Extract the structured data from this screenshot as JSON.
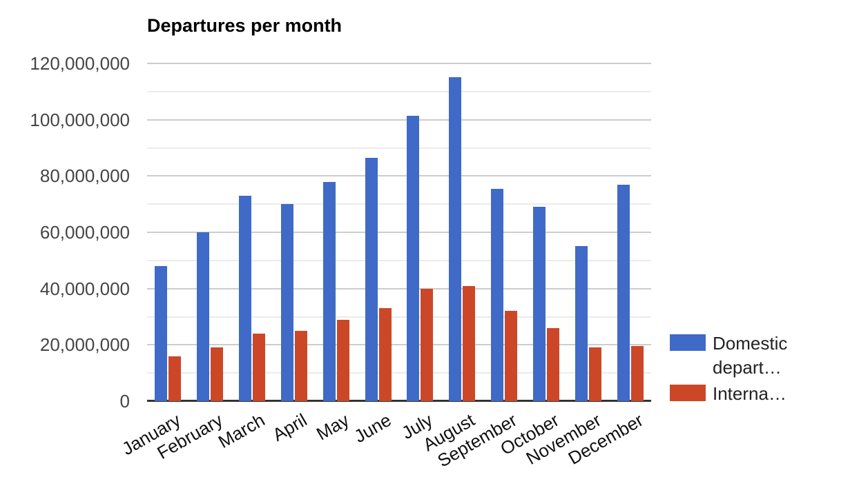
{
  "chart_data": {
    "type": "bar",
    "title": "Departures per month",
    "categories": [
      "January",
      "February",
      "March",
      "April",
      "May",
      "June",
      "July",
      "August",
      "September",
      "October",
      "November",
      "December"
    ],
    "series": [
      {
        "name": "Domestic depart…",
        "legend_label": "Domestic depart…",
        "color": "#3F6AC7",
        "values": [
          48000000,
          60000000,
          73000000,
          70000000,
          78000000,
          86500000,
          101500000,
          115000000,
          75500000,
          69000000,
          55000000,
          77000000
        ]
      },
      {
        "name": "Interna…",
        "legend_label": "Interna…",
        "color": "#CC4728",
        "values": [
          16000000,
          19000000,
          24000000,
          25000000,
          29000000,
          33000000,
          40000000,
          41000000,
          32000000,
          26000000,
          19000000,
          19500000
        ]
      }
    ],
    "xlabel": "",
    "ylabel": "",
    "ylim": [
      0,
      120000000
    ],
    "y_major_step": 20000000,
    "y_minor_step": 10000000,
    "y_tick_labels": [
      "0",
      "20,000,000",
      "40,000,000",
      "60,000,000",
      "80,000,000",
      "100,000,000",
      "120,000,000"
    ],
    "grid": true,
    "legend_position": "right"
  },
  "colors": {
    "major_gridline": "#cccccc",
    "minor_gridline": "#ebebeb",
    "axis_line": "#333333",
    "title_text": "#000000",
    "y_tick_text": "#454545",
    "x_label_text": "#111111",
    "legend_text": "#222222",
    "background": "#ffffff"
  }
}
